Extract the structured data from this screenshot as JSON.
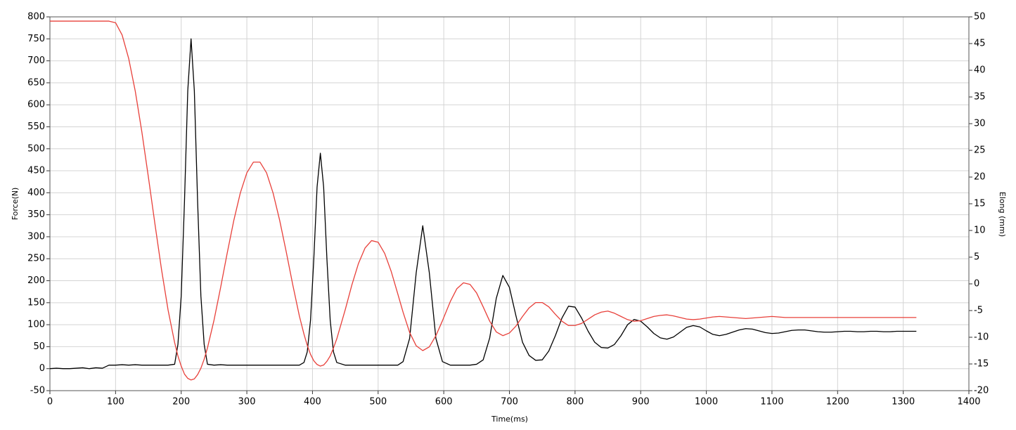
{
  "chart_data": {
    "type": "line",
    "x_label": "Time(ms)",
    "y_label": "Force(N)",
    "y2_label": "Elong (mm)",
    "xlim": [
      0,
      1400
    ],
    "xticks": [
      0,
      100,
      200,
      300,
      400,
      500,
      600,
      700,
      800,
      900,
      1000,
      1100,
      1200,
      1300,
      1400
    ],
    "ylim": [
      -50,
      800
    ],
    "yticks": [
      -50,
      0,
      50,
      100,
      150,
      200,
      250,
      300,
      350,
      400,
      450,
      500,
      550,
      600,
      650,
      700,
      750,
      800
    ],
    "y2lim": [
      -20,
      50
    ],
    "y2ticks": [
      -20,
      -15,
      -10,
      -5,
      0,
      5,
      10,
      15,
      20,
      25,
      30,
      35,
      40,
      45,
      50
    ],
    "grid": true,
    "x": [
      0,
      10,
      20,
      30,
      40,
      50,
      60,
      70,
      80,
      90,
      100,
      110,
      120,
      130,
      140,
      150,
      160,
      170,
      180,
      190,
      195,
      200,
      205,
      210,
      215,
      220,
      225,
      230,
      235,
      240,
      250,
      260,
      270,
      280,
      290,
      300,
      310,
      320,
      330,
      340,
      350,
      360,
      370,
      380,
      387,
      392,
      397,
      402,
      407,
      412,
      417,
      422,
      427,
      432,
      437,
      450,
      460,
      470,
      480,
      490,
      500,
      510,
      520,
      530,
      538,
      548,
      558,
      568,
      578,
      588,
      598,
      610,
      620,
      630,
      640,
      650,
      660,
      670,
      680,
      690,
      700,
      710,
      720,
      730,
      740,
      750,
      760,
      770,
      780,
      790,
      800,
      810,
      820,
      830,
      840,
      850,
      860,
      870,
      880,
      890,
      900,
      910,
      920,
      930,
      940,
      950,
      960,
      970,
      980,
      990,
      1000,
      1010,
      1020,
      1030,
      1040,
      1050,
      1060,
      1070,
      1080,
      1090,
      1100,
      1110,
      1120,
      1130,
      1140,
      1150,
      1160,
      1170,
      1180,
      1190,
      1200,
      1210,
      1220,
      1230,
      1240,
      1250,
      1260,
      1270,
      1280,
      1290,
      1300,
      1310,
      1320
    ],
    "series": [
      {
        "color": "#000000",
        "axis": "y",
        "values": [
          0,
          1,
          0,
          0,
          1,
          2,
          0,
          2,
          1,
          8,
          8,
          9,
          8,
          9,
          8,
          8,
          8,
          8,
          8,
          10,
          55,
          165,
          380,
          632,
          750,
          632,
          380,
          165,
          55,
          10,
          8,
          9,
          8,
          8,
          8,
          8,
          8,
          8,
          8,
          8,
          8,
          8,
          8,
          8,
          14,
          38,
          110,
          249,
          413,
          490,
          413,
          249,
          110,
          38,
          14,
          8,
          8,
          8,
          8,
          8,
          8,
          8,
          8,
          8,
          16,
          69,
          218,
          325,
          218,
          69,
          16,
          8,
          8,
          8,
          8,
          10,
          20,
          70,
          160,
          212,
          185,
          120,
          60,
          30,
          19,
          20,
          40,
          75,
          115,
          142,
          140,
          115,
          85,
          60,
          48,
          47,
          55,
          75,
          100,
          112,
          108,
          95,
          80,
          70,
          67,
          72,
          83,
          94,
          98,
          95,
          86,
          78,
          75,
          78,
          83,
          88,
          91,
          90,
          86,
          82,
          80,
          81,
          84,
          87,
          88,
          88,
          86,
          84,
          83,
          83,
          84,
          85,
          85,
          84,
          84,
          85,
          85,
          84,
          84,
          85,
          85,
          85,
          85
        ]
      },
      {
        "color": "#e8403a",
        "axis": "y2",
        "values": [
          49.2,
          49.2,
          49.2,
          49.2,
          49.2,
          49.2,
          49.2,
          49.2,
          49.2,
          49.2,
          48.9,
          46.6,
          42.2,
          36.1,
          28.5,
          20.0,
          11.2,
          2.7,
          -4.9,
          -11.0,
          -13.5,
          -15.4,
          -16.9,
          -17.7,
          -18.0,
          -17.8,
          -17.0,
          -15.8,
          -14.1,
          -12.0,
          -6.8,
          -0.7,
          5.7,
          11.8,
          17.0,
          20.8,
          22.8,
          22.8,
          20.8,
          17.0,
          11.9,
          6.0,
          -0.2,
          -6.0,
          -9.4,
          -11.5,
          -13.2,
          -14.4,
          -15.1,
          -15.4,
          -15.2,
          -14.5,
          -13.5,
          -12.0,
          -10.3,
          -4.8,
          -0.2,
          3.8,
          6.7,
          8.1,
          7.8,
          5.7,
          2.3,
          -1.9,
          -5.3,
          -9.1,
          -11.6,
          -12.5,
          -11.8,
          -9.7,
          -6.9,
          -3.3,
          -0.9,
          0.2,
          -0.1,
          -1.7,
          -4.3,
          -7.0,
          -9.0,
          -9.7,
          -9.2,
          -7.9,
          -6.1,
          -4.5,
          -3.5,
          -3.5,
          -4.3,
          -5.7,
          -7.0,
          -7.8,
          -7.8,
          -7.4,
          -6.6,
          -5.8,
          -5.3,
          -5.1,
          -5.5,
          -6.1,
          -6.7,
          -7.0,
          -6.9,
          -6.5,
          -6.1,
          -5.9,
          -5.8,
          -6.0,
          -6.3,
          -6.6,
          -6.7,
          -6.6,
          -6.4,
          -6.2,
          -6.1,
          -6.2,
          -6.3,
          -6.4,
          -6.5,
          -6.4,
          -6.3,
          -6.2,
          -6.1,
          -6.2,
          -6.3,
          -6.3,
          -6.3,
          -6.3,
          -6.3,
          -6.3,
          -6.3,
          -6.3,
          -6.3,
          -6.3,
          -6.3,
          -6.3,
          -6.3,
          -6.3,
          -6.3,
          -6.3,
          -6.3,
          -6.3,
          -6.3,
          -6.3,
          -6.3
        ]
      }
    ]
  }
}
